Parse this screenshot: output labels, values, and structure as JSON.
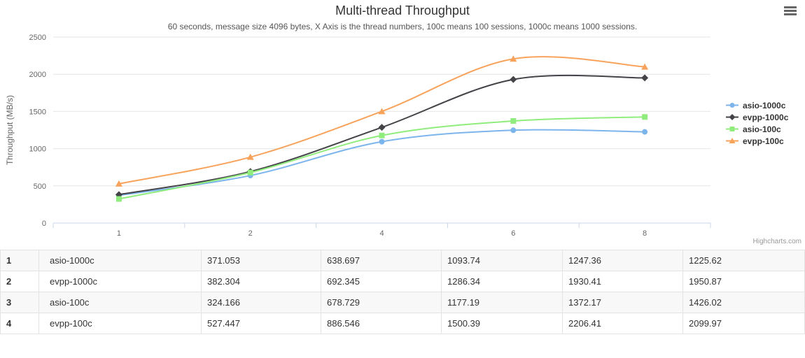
{
  "chart": {
    "title": "Multi-thread Throughput",
    "subtitle": "60 seconds, message size 4096 bytes, X Axis is the thread numbers, 100c means 100 sessions, 1000c means 1000 sessions.",
    "credits": "Highcharts.com",
    "menu_icon": "hamburger-icon"
  },
  "chart_data": {
    "type": "line",
    "categories": [
      "1",
      "2",
      "4",
      "6",
      "8"
    ],
    "series": [
      {
        "name": "asio-1000c",
        "color": "#7cb5ec",
        "marker": "circle",
        "values": [
          371.053,
          638.697,
          1093.74,
          1247.36,
          1225.62
        ]
      },
      {
        "name": "evpp-1000c",
        "color": "#434348",
        "marker": "diamond",
        "values": [
          382.304,
          692.345,
          1286.34,
          1930.41,
          1950.87
        ]
      },
      {
        "name": "asio-100c",
        "color": "#90ed7d",
        "marker": "square",
        "values": [
          324.166,
          678.729,
          1177.19,
          1372.17,
          1426.02
        ]
      },
      {
        "name": "evpp-100c",
        "color": "#f7a35c",
        "marker": "triangle",
        "values": [
          527.447,
          886.546,
          1500.39,
          2206.41,
          2099.97
        ]
      }
    ],
    "title": "Multi-thread Throughput",
    "xlabel": "",
    "ylabel": "Throughput (MB/s)",
    "ylim": [
      0,
      2500
    ],
    "yticks": [
      0,
      500,
      1000,
      1500,
      2000,
      2500
    ],
    "legend_position": "right",
    "legend_order": [
      "asio-1000c",
      "evpp-1000c",
      "asio-100c",
      "evpp-100c"
    ],
    "grid": true
  },
  "table": {
    "rows": [
      [
        "1",
        "asio-1000c",
        "371.053",
        "638.697",
        "1093.74",
        "1247.36",
        "1225.62"
      ],
      [
        "2",
        "evpp-1000c",
        "382.304",
        "692.345",
        "1286.34",
        "1930.41",
        "1950.87"
      ],
      [
        "3",
        "asio-100c",
        "324.166",
        "678.729",
        "1177.19",
        "1372.17",
        "1426.02"
      ],
      [
        "4",
        "evpp-100c",
        "527.447",
        "886.546",
        "1500.39",
        "2206.41",
        "2099.97"
      ]
    ]
  },
  "colors": {
    "gridline": "#e6e6e6",
    "axis_line": "#ccd6eb",
    "axis_label": "#666666",
    "title_text": "#333333",
    "subtitle_text": "#555555",
    "legend_text": "#333333",
    "credits_text": "#999999",
    "table_border": "#e3e3e3"
  }
}
